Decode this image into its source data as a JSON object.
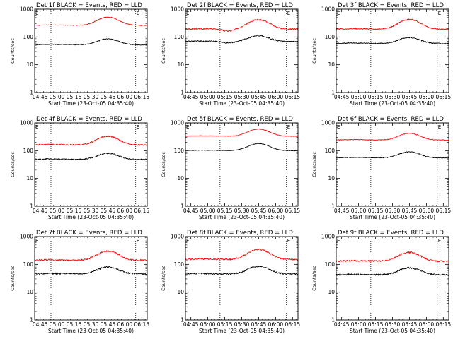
{
  "chart_data": [
    {
      "type": "line",
      "title": "Det 1f BLACK = Events, RED = LLD",
      "xlabel": "Start Time (23-Oct-05 04:35:40)",
      "ylabel": "Counts/sec",
      "yscale": "log",
      "ylim": [
        1,
        1000
      ],
      "yticks": [
        "1",
        "10",
        "100",
        "1000"
      ],
      "xticks": [
        "04:45",
        "05:00",
        "05:15",
        "05:30",
        "05:45",
        "06:00",
        "06:15"
      ],
      "xlim": [
        -0.08,
        1.58
      ],
      "vlines": [
        0.16,
        1.41
      ],
      "markers": [
        "E",
        "E"
      ],
      "series": [
        {
          "name": "RED = LLD",
          "color": "#ff0000",
          "base": 260,
          "peak": 520,
          "noise": 0.025,
          "dip": 0
        },
        {
          "name": "BLACK = Events",
          "color": "#000000",
          "base": 52,
          "peak": 85,
          "noise": 0.03,
          "dip": 0
        }
      ]
    },
    {
      "type": "line",
      "title": "Det 2f BLACK = Events, RED = LLD",
      "xlabel": "Start Time (23-Oct-05 04:35:40)",
      "ylabel": "Counts/sec",
      "yscale": "log",
      "ylim": [
        1,
        1000
      ],
      "yticks": [
        "1",
        "10",
        "100",
        "1000"
      ],
      "xticks": [
        "04:45",
        "05:00",
        "05:15",
        "05:30",
        "05:45",
        "06:00",
        "06:15"
      ],
      "xlim": [
        -0.08,
        1.58
      ],
      "vlines": [
        0.43,
        1.41
      ],
      "markers": [
        "E",
        "E"
      ],
      "series": [
        {
          "name": "RED = LLD",
          "color": "#ff0000",
          "base": 190,
          "peak": 420,
          "noise": 0.05,
          "dip": 0.15
        },
        {
          "name": "BLACK = Events",
          "color": "#000000",
          "base": 68,
          "peak": 110,
          "noise": 0.05,
          "dip": 0.1
        }
      ]
    },
    {
      "type": "line",
      "title": "Det 3f BLACK = Events, RED = LLD",
      "xlabel": "Start Time (23-Oct-05 04:35:40)",
      "ylabel": "Counts/sec",
      "yscale": "log",
      "ylim": [
        1,
        1000
      ],
      "yticks": [
        "1",
        "10",
        "100",
        "1000"
      ],
      "xticks": [
        "04:45",
        "05:00",
        "05:15",
        "05:30",
        "05:45",
        "06:00",
        "06:15"
      ],
      "xlim": [
        -0.08,
        1.58
      ],
      "vlines": [
        0.43,
        1.41
      ],
      "markers": [
        "E",
        "E"
      ],
      "series": [
        {
          "name": "RED = LLD",
          "color": "#ff0000",
          "base": 190,
          "peak": 430,
          "noise": 0.04,
          "dip": 0
        },
        {
          "name": "BLACK = Events",
          "color": "#000000",
          "base": 58,
          "peak": 95,
          "noise": 0.04,
          "dip": 0
        }
      ]
    },
    {
      "type": "line",
      "title": "Det 4f BLACK = Events, RED = LLD",
      "xlabel": "Start Time (23-Oct-05 04:35:40)",
      "ylabel": "Counts/sec",
      "yscale": "log",
      "ylim": [
        1,
        1000
      ],
      "yticks": [
        "1",
        "10",
        "100",
        "1000"
      ],
      "xticks": [
        "04:45",
        "05:00",
        "05:15",
        "05:30",
        "05:45",
        "06:00",
        "06:15"
      ],
      "xlim": [
        -0.08,
        1.58
      ],
      "vlines": [
        0.16,
        1.41
      ],
      "markers": [
        "E",
        "E"
      ],
      "series": [
        {
          "name": "RED = LLD",
          "color": "#ff0000",
          "base": 160,
          "peak": 330,
          "noise": 0.05,
          "dip": 0
        },
        {
          "name": "BLACK = Events",
          "color": "#000000",
          "base": 48,
          "peak": 80,
          "noise": 0.05,
          "dip": 0
        }
      ]
    },
    {
      "type": "line",
      "title": "Det 5f BLACK = Events, RED = LLD",
      "xlabel": "Start Time (23-Oct-05 04:35:40)",
      "ylabel": "Counts/sec",
      "yscale": "log",
      "ylim": [
        1,
        1000
      ],
      "yticks": [
        "1",
        "10",
        "100",
        "1000"
      ],
      "xticks": [
        "04:45",
        "05:00",
        "05:15",
        "05:30",
        "05:45",
        "06:00",
        "06:15"
      ],
      "xlim": [
        -0.08,
        1.58
      ],
      "vlines": [
        0.43,
        1.41
      ],
      "markers": [
        "E",
        "E"
      ],
      "series": [
        {
          "name": "RED = LLD",
          "color": "#ff0000",
          "base": 330,
          "peak": 600,
          "noise": 0.02,
          "dip": 0
        },
        {
          "name": "BLACK = Events",
          "color": "#000000",
          "base": 100,
          "peak": 180,
          "noise": 0.02,
          "dip": 0
        }
      ]
    },
    {
      "type": "line",
      "title": "Det 6f BLACK = Events, RED = LLD",
      "xlabel": "Start Time (23-Oct-05 04:35:40)",
      "ylabel": "Counts/sec",
      "yscale": "log",
      "ylim": [
        1,
        1000
      ],
      "yticks": [
        "1",
        "10",
        "100",
        "1000"
      ],
      "xticks": [
        "04:45",
        "05:00",
        "05:15",
        "05:30",
        "05:45",
        "06:00",
        "06:15"
      ],
      "xlim": [
        -0.08,
        1.58
      ],
      "vlines": [
        0.43,
        1.41
      ],
      "markers": [
        "E",
        "E"
      ],
      "series": [
        {
          "name": "RED = LLD",
          "color": "#ff0000",
          "base": 240,
          "peak": 420,
          "noise": 0.025,
          "dip": 0
        },
        {
          "name": "BLACK = Events",
          "color": "#000000",
          "base": 55,
          "peak": 90,
          "noise": 0.03,
          "dip": 0
        }
      ]
    },
    {
      "type": "line",
      "title": "Det 7f BLACK = Events, RED = LLD",
      "xlabel": "Start Time (23-Oct-05 04:35:40)",
      "ylabel": "Counts/sec",
      "yscale": "log",
      "ylim": [
        1,
        1000
      ],
      "yticks": [
        "1",
        "10",
        "100",
        "1000"
      ],
      "xticks": [
        "04:45",
        "05:00",
        "05:15",
        "05:30",
        "05:45",
        "06:00",
        "06:15"
      ],
      "xlim": [
        -0.08,
        1.58
      ],
      "vlines": [
        0.16,
        1.41
      ],
      "markers": [
        "E",
        "E"
      ],
      "series": [
        {
          "name": "RED = LLD",
          "color": "#ff0000",
          "base": 140,
          "peak": 300,
          "noise": 0.06,
          "dip": 0
        },
        {
          "name": "BLACK = Events",
          "color": "#000000",
          "base": 45,
          "peak": 80,
          "noise": 0.06,
          "dip": 0
        }
      ]
    },
    {
      "type": "line",
      "title": "Det 8f BLACK = Events, RED = LLD",
      "xlabel": "Start Time (23-Oct-05 04:35:40)",
      "ylabel": "Counts/sec",
      "yscale": "log",
      "ylim": [
        1,
        1000
      ],
      "yticks": [
        "1",
        "10",
        "100",
        "1000"
      ],
      "xticks": [
        "04:45",
        "05:00",
        "05:15",
        "05:30",
        "05:45",
        "06:00",
        "06:15"
      ],
      "xlim": [
        -0.08,
        1.58
      ],
      "vlines": [
        0.43,
        1.41
      ],
      "markers": [
        "E",
        "E"
      ],
      "series": [
        {
          "name": "RED = LLD",
          "color": "#ff0000",
          "base": 150,
          "peak": 350,
          "noise": 0.06,
          "dip": 0
        },
        {
          "name": "BLACK = Events",
          "color": "#000000",
          "base": 45,
          "peak": 85,
          "noise": 0.06,
          "dip": 0
        }
      ]
    },
    {
      "type": "line",
      "title": "Det 9f BLACK = Events, RED = LLD",
      "xlabel": "Start Time (23-Oct-05 04:35:40)",
      "ylabel": "Counts/sec",
      "yscale": "log",
      "ylim": [
        1,
        1000
      ],
      "yticks": [
        "1",
        "10",
        "100",
        "1000"
      ],
      "xticks": [
        "04:45",
        "05:00",
        "05:15",
        "05:30",
        "05:45",
        "06:00",
        "06:15"
      ],
      "xlim": [
        -0.08,
        1.58
      ],
      "vlines": [
        0.43,
        1.41
      ],
      "markers": [
        "E",
        "E"
      ],
      "series": [
        {
          "name": "RED = LLD",
          "color": "#ff0000",
          "base": 130,
          "peak": 270,
          "noise": 0.06,
          "dip": 0
        },
        {
          "name": "BLACK = Events",
          "color": "#000000",
          "base": 42,
          "peak": 75,
          "noise": 0.06,
          "dip": 0
        }
      ]
    }
  ]
}
